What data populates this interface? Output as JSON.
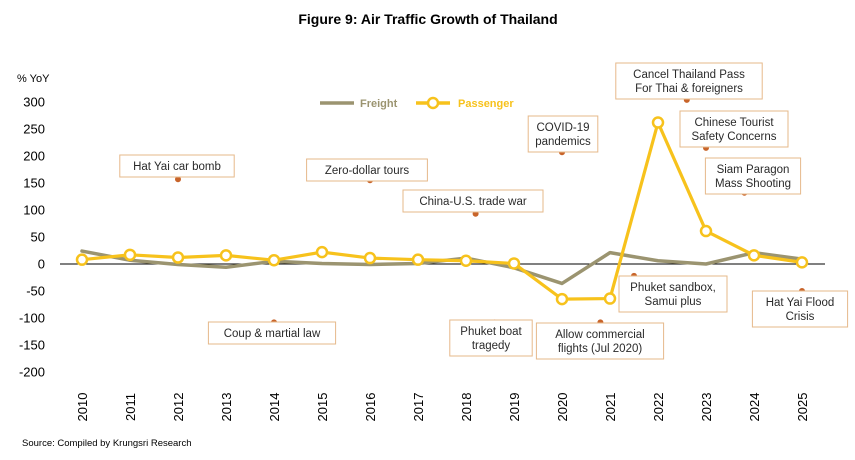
{
  "chart_data": {
    "type": "line",
    "title": "Figure 9:  Air Traffic Growth of Thailand",
    "ylabel": "% YoY",
    "ylim": [
      -200,
      300
    ],
    "yticks": [
      "300",
      "250",
      "200",
      "150",
      "100",
      "50",
      "0",
      "-50",
      "-100",
      "-150",
      "-200"
    ],
    "ytick_values": [
      300,
      250,
      200,
      150,
      100,
      50,
      0,
      -50,
      -100,
      -150,
      -200
    ],
    "categories": [
      "2010",
      "2011",
      "2012",
      "2013",
      "2014",
      "2015",
      "2016",
      "2017",
      "2018",
      "2019",
      "2020",
      "2021",
      "2022",
      "2023",
      "2024",
      "2025"
    ],
    "series": [
      {
        "name": "Freight",
        "color": "#9b9470",
        "marker": false,
        "values": [
          24,
          7,
          -1,
          -6,
          5,
          1,
          -1,
          1,
          11,
          -7,
          -36,
          21,
          6,
          0,
          21,
          9
        ]
      },
      {
        "name": "Passenger",
        "color": "#f7c21c",
        "marker": true,
        "values": [
          8,
          17,
          12,
          16,
          7,
          22,
          11,
          8,
          6,
          1,
          -65,
          -64,
          262,
          61,
          16,
          3
        ]
      }
    ],
    "legend": "top-left",
    "grid": false,
    "annotations": [
      {
        "lines": [
          "Hat Yai car bomb"
        ],
        "x": 2012,
        "y": 157
      },
      {
        "lines": [
          "Coup & martial law"
        ],
        "x": 2014,
        "y": -108
      },
      {
        "lines": [
          "Zero-dollar tours"
        ],
        "x": 2016,
        "y": 155
      },
      {
        "lines": [
          "China-U.S. trade war"
        ],
        "x": 2018.2,
        "y": 93
      },
      {
        "lines": [
          "Phuket boat",
          "tragedy"
        ],
        "x": 2018.6,
        "y": -108
      },
      {
        "lines": [
          "COVID-19",
          "pandemics"
        ],
        "x": 2020,
        "y": 207
      },
      {
        "lines": [
          "Allow commercial",
          "flights (Jul 2020)"
        ],
        "x": 2020.8,
        "y": -108
      },
      {
        "lines": [
          "Phuket sandbox,",
          "Samui plus"
        ],
        "x": 2021.5,
        "y": -22
      },
      {
        "lines": [
          "Cancel Thailand Pass",
          "For Thai & foreigners"
        ],
        "x": 2022.6,
        "y": 304
      },
      {
        "lines": [
          "Chinese Tourist",
          "Safety Concerns"
        ],
        "x": 2023,
        "y": 215
      },
      {
        "lines": [
          "Siam Paragon",
          "Mass Shooting"
        ],
        "x": 2023.8,
        "y": 132
      },
      {
        "lines": [
          "Hat Yai Flood",
          "Crisis"
        ],
        "x": 2025,
        "y": -50
      }
    ],
    "annotation_color": "#c8642a"
  },
  "source": "Source: Compiled by Krungsri Research"
}
